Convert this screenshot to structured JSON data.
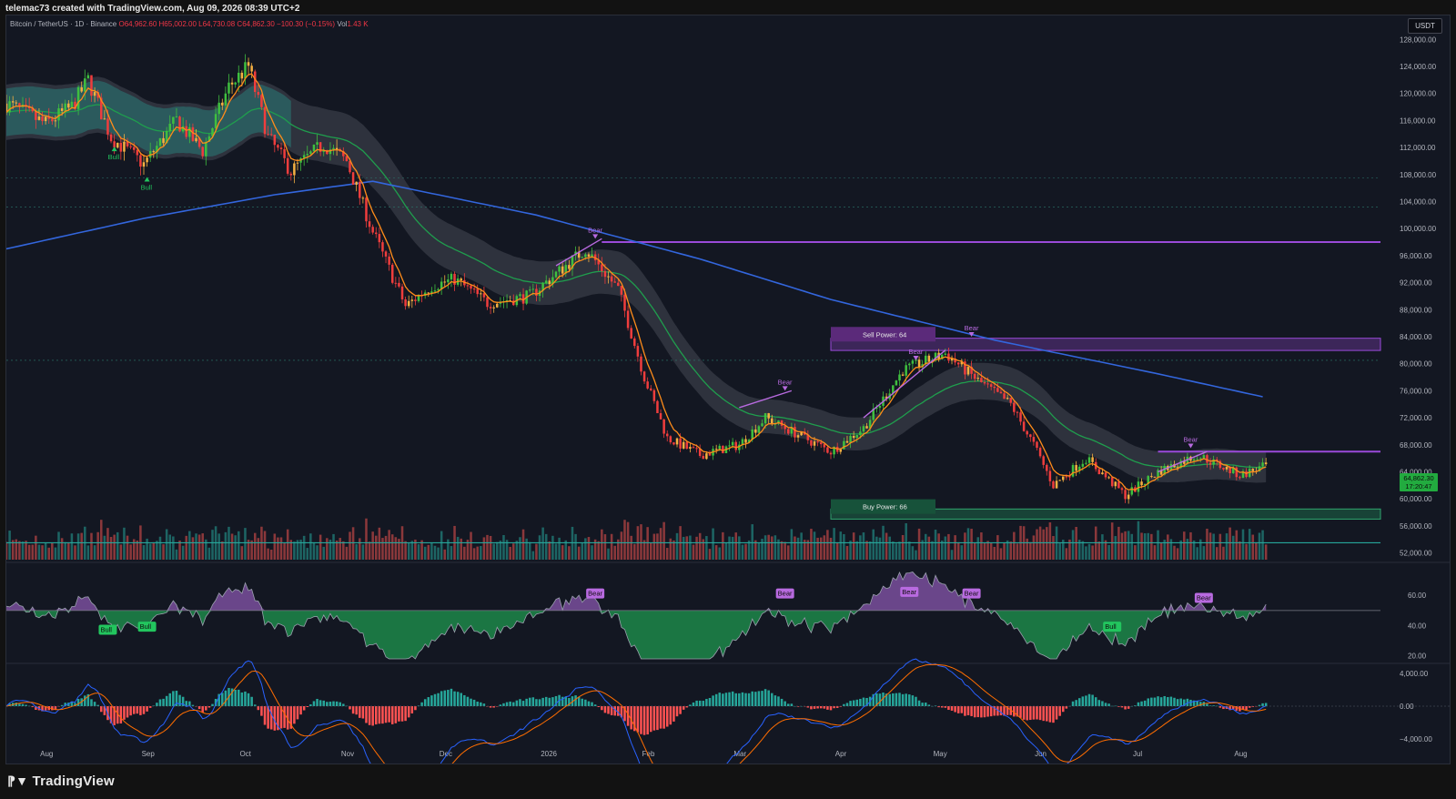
{
  "header": {
    "created_by": "telemac73 created with TradingView.com, Aug 09, 2026 08:39 UTC+2"
  },
  "legend": {
    "symbol": "Bitcoin / TetherUS · 1D · Binance",
    "open": "O64,962.60",
    "high": "H65,002.00",
    "low": "L64,730.08",
    "close": "C64,862.30",
    "change": "−100.30 (−0.15%)",
    "vol_label": "Vol",
    "vol": "1.43 K"
  },
  "currency_button": "USDT",
  "last_price": {
    "price": "64,862.30",
    "countdown": "17:20:47"
  },
  "footer_logo": "TradingView",
  "colors": {
    "background": "#131722",
    "up": "#26a69a",
    "down": "#ef5350",
    "ema_fast": "#ff8c1a",
    "ema_mid": "#1f9e4d",
    "ema_slow": "#3366dd",
    "bear_label": "#b86ae0",
    "bull_label": "#22c55e",
    "resistance": "#9a4ad9",
    "support": "#1f7a52"
  },
  "chart_data": [
    {
      "type": "candlestick",
      "title": "Bitcoin / TetherUS · 1D · Binance",
      "y_unit": "USDT",
      "y_ticks": [
        "128,000.00",
        "124,000.00",
        "120,000.00",
        "116,000.00",
        "112,000.00",
        "108,000.00",
        "104,000.00",
        "100,000.00",
        "96,000.00",
        "92,000.00",
        "88,000.00",
        "84,000.00",
        "80,000.00",
        "76,000.00",
        "72,000.00",
        "68,000.00",
        "64,000.00",
        "60,000.00",
        "56,000.00",
        "52,000.00"
      ],
      "ylim": [
        51000,
        131000
      ],
      "x_ticks": [
        "Aug",
        "Sep",
        "Oct",
        "Nov",
        "Dec",
        "2026",
        "Feb",
        "Mar",
        "Apr",
        "May",
        "Jun",
        "Jul",
        "Aug"
      ],
      "x_tick_days": [
        0,
        31,
        61,
        92,
        122,
        153,
        184,
        212,
        243,
        273,
        304,
        334,
        365
      ],
      "x_range_days": [
        -12,
        408
      ],
      "close_anchors": [
        {
          "x_day": -12,
          "y": 118500
        },
        {
          "x_day": 0,
          "y": 115500
        },
        {
          "x_day": 8,
          "y": 118000
        },
        {
          "x_day": 13,
          "y": 122000
        },
        {
          "x_day": 20,
          "y": 113500
        },
        {
          "x_day": 30,
          "y": 109500
        },
        {
          "x_day": 40,
          "y": 116000
        },
        {
          "x_day": 48,
          "y": 111500
        },
        {
          "x_day": 56,
          "y": 121000
        },
        {
          "x_day": 62,
          "y": 124000
        },
        {
          "x_day": 68,
          "y": 113500
        },
        {
          "x_day": 75,
          "y": 108500
        },
        {
          "x_day": 85,
          "y": 112500
        },
        {
          "x_day": 92,
          "y": 110000
        },
        {
          "x_day": 100,
          "y": 99500
        },
        {
          "x_day": 110,
          "y": 88500
        },
        {
          "x_day": 118,
          "y": 91500
        },
        {
          "x_day": 125,
          "y": 92500
        },
        {
          "x_day": 135,
          "y": 89000
        },
        {
          "x_day": 148,
          "y": 90000
        },
        {
          "x_day": 165,
          "y": 97000
        },
        {
          "x_day": 175,
          "y": 91000
        },
        {
          "x_day": 183,
          "y": 78000
        },
        {
          "x_day": 190,
          "y": 69000
        },
        {
          "x_day": 200,
          "y": 66500
        },
        {
          "x_day": 212,
          "y": 68000
        },
        {
          "x_day": 220,
          "y": 72000
        },
        {
          "x_day": 228,
          "y": 70000
        },
        {
          "x_day": 240,
          "y": 67000
        },
        {
          "x_day": 250,
          "y": 70500
        },
        {
          "x_day": 262,
          "y": 79000
        },
        {
          "x_day": 275,
          "y": 81500
        },
        {
          "x_day": 285,
          "y": 77500
        },
        {
          "x_day": 295,
          "y": 74000
        },
        {
          "x_day": 302,
          "y": 68000
        },
        {
          "x_day": 308,
          "y": 62000
        },
        {
          "x_day": 318,
          "y": 66000
        },
        {
          "x_day": 330,
          "y": 60500
        },
        {
          "x_day": 340,
          "y": 64000
        },
        {
          "x_day": 352,
          "y": 66500
        },
        {
          "x_day": 365,
          "y": 63500
        },
        {
          "x_day": 373,
          "y": 64862
        }
      ],
      "series": [
        {
          "name": "",
          "kind": "ema_fast",
          "color": "#ff8c1a"
        },
        {
          "name": "",
          "kind": "ema_mid",
          "color": "#1f9e4d"
        },
        {
          "name": "",
          "kind": "ema_slow",
          "color": "#3366dd",
          "anchors": [
            {
              "x_day": -12,
              "y": 97000
            },
            {
              "x_day": 30,
              "y": 101500
            },
            {
              "x_day": 70,
              "y": 105000
            },
            {
              "x_day": 100,
              "y": 107000
            },
            {
              "x_day": 150,
              "y": 102000
            },
            {
              "x_day": 200,
              "y": 95500
            },
            {
              "x_day": 240,
              "y": 89500
            },
            {
              "x_day": 290,
              "y": 83500
            },
            {
              "x_day": 340,
              "y": 78500
            },
            {
              "x_day": 373,
              "y": 75000
            }
          ]
        }
      ],
      "levels": [
        {
          "y": 98000,
          "x_from_day": 170,
          "kind": "resistance"
        },
        {
          "y": 83500,
          "x_from_day": 240,
          "kind": "resistance_zone",
          "y2": 82500
        },
        {
          "y": 58500,
          "x_from_day": 240,
          "kind": "support_zone",
          "y2": 57000
        },
        {
          "y": 67000,
          "x_from_day": 340,
          "kind": "resistance"
        }
      ],
      "zone_labels": [
        {
          "text": "Sell Power: 64",
          "x_day": 240,
          "y": 84500,
          "kind": "sell"
        },
        {
          "text": "Buy Power: 66",
          "x_day": 240,
          "y": 59000,
          "kind": "buy"
        }
      ],
      "signals": [
        {
          "text": "Bull",
          "x_day": 21,
          "y": 112000,
          "dir": "up"
        },
        {
          "text": "Bull",
          "x_day": 31,
          "y": 107500,
          "dir": "up"
        },
        {
          "text": "Bear",
          "x_day": 168,
          "y": 98500,
          "dir": "down"
        },
        {
          "text": "Bear",
          "x_day": 226,
          "y": 76000,
          "dir": "down"
        },
        {
          "text": "Bear",
          "x_day": 266,
          "y": 80500,
          "dir": "down"
        },
        {
          "text": "Bear",
          "x_day": 283,
          "y": 84000,
          "dir": "down"
        },
        {
          "text": "Bear",
          "x_day": 350,
          "y": 67500,
          "dir": "down"
        }
      ]
    },
    {
      "type": "bar",
      "title": "",
      "series_name": "",
      "note": "volume histogram overlaid at bottom of price pane"
    },
    {
      "type": "area",
      "title": "",
      "y_ticks": [
        "60.00",
        "40.00",
        "20.00"
      ],
      "ylim": [
        15,
        80
      ],
      "midline": 50,
      "signals": [
        {
          "text": "Bull",
          "x_day": 19,
          "y": 37,
          "dir": "up"
        },
        {
          "text": "Bull",
          "x_day": 31,
          "y": 39,
          "dir": "up"
        },
        {
          "text": "Bear",
          "x_day": 168,
          "y": 61,
          "dir": "down"
        },
        {
          "text": "Bear",
          "x_day": 226,
          "y": 61,
          "dir": "down"
        },
        {
          "text": "Bear",
          "x_day": 264,
          "y": 62,
          "dir": "down"
        },
        {
          "text": "Bear",
          "x_day": 283,
          "y": 61,
          "dir": "down"
        },
        {
          "text": "Bull",
          "x_day": 326,
          "y": 39,
          "dir": "up"
        },
        {
          "text": "Bear",
          "x_day": 354,
          "y": 58,
          "dir": "down"
        }
      ]
    },
    {
      "type": "bar",
      "title": "",
      "y_ticks": [
        "4,000.00",
        "0.00",
        "−4,000.00"
      ],
      "ylim": [
        -5000,
        5000
      ],
      "series": [
        {
          "name": "",
          "kind": "macd",
          "color": "#2962ff"
        },
        {
          "name": "",
          "kind": "signal",
          "color": "#ff6d00"
        }
      ]
    }
  ]
}
